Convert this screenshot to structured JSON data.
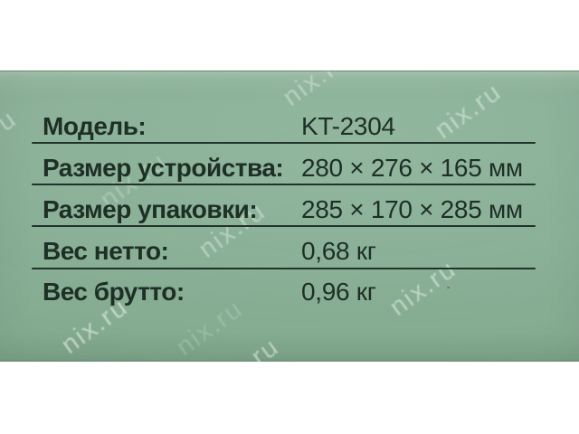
{
  "photo": {
    "watermark_text": "nix.ru",
    "background_color": "#89b197",
    "top_band_color": "#a7c5b0",
    "text_color": "#1e2f26",
    "divider_color": "#22332a",
    "page_background": "#ffffff"
  },
  "spec_table": {
    "rows": [
      {
        "label": "Модель:",
        "value": "KT-2304"
      },
      {
        "label": "Размер устройства:",
        "value": "280 × 276 × 165 мм"
      },
      {
        "label": "Размер упаковки:",
        "value": "285 × 170 × 285 мм"
      },
      {
        "label": "Вес нетто:",
        "value": "0,68 кг"
      },
      {
        "label": "Вес брутто:",
        "value": "0,96 кг"
      }
    ]
  }
}
